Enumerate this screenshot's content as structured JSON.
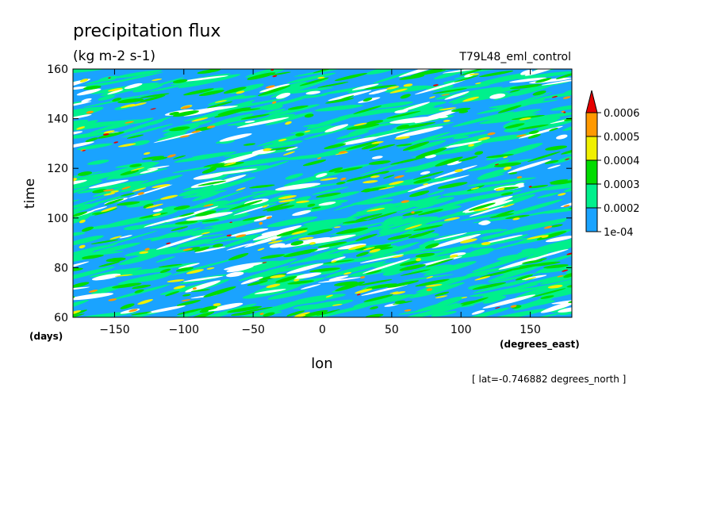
{
  "chart_data": {
    "type": "heatmap",
    "title": "precipitation flux",
    "units": "(kg m-2 s-1)",
    "experiment": "T79L48_eml_control",
    "xlabel": "lon",
    "x_units": "(degrees_east)",
    "ylabel": "time",
    "y_units": "(days)",
    "slice_note": "[ lat=-0.746882 degrees_north ]",
    "xlim": [
      -180,
      180
    ],
    "ylim": [
      60,
      160
    ],
    "x_ticks": [
      -150,
      -100,
      -50,
      0,
      50,
      100,
      150
    ],
    "x_tick_labels": [
      "−150",
      "−100",
      "−50",
      "0",
      "50",
      "100",
      "150"
    ],
    "y_ticks": [
      60,
      80,
      100,
      120,
      140,
      160
    ],
    "y_tick_labels": [
      "60",
      "80",
      "100",
      "120",
      "140",
      "160"
    ],
    "colorbar": {
      "levels": [
        0.0001,
        0.0002,
        0.0003,
        0.0004,
        0.0005,
        0.0006
      ],
      "labels": [
        "1e-04",
        "0.0002",
        "0.0003",
        "0.0004",
        "0.0005",
        "0.0006"
      ],
      "colors": [
        "#1aa3ff",
        "#00f08c",
        "#00dc00",
        "#f0f000",
        "#ff9900",
        "#e60000"
      ],
      "below_color": "#ffffff",
      "extend": "max"
    }
  }
}
